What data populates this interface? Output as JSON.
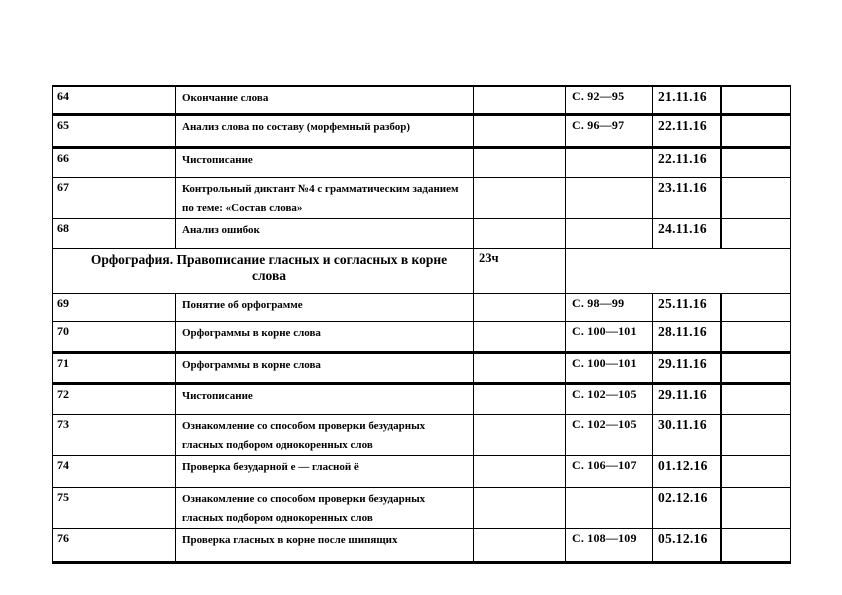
{
  "section": {
    "title": "Орфография. Правописание гласных и согласных в корне слова",
    "hours": "23ч"
  },
  "rows_before_section": [
    {
      "num": "64",
      "topic": "Окончание слова",
      "pages": "С. 92—95",
      "date": "21.11.16"
    },
    {
      "num": "65",
      "topic": "Анализ слова по составу (морфемный разбор)",
      "pages": "С. 96—97",
      "date": "22.11.16"
    },
    {
      "num": "66",
      "topic": "Чистописание",
      "pages": "",
      "date": "22.11.16"
    },
    {
      "num": "67",
      "topic": "Контрольный диктант №4 с грамматическим заданием по теме: «Состав слова»",
      "pages": "",
      "date": "23.11.16"
    },
    {
      "num": "68",
      "topic": "Анализ ошибок",
      "pages": "",
      "date": "24.11.16"
    }
  ],
  "rows_after_section": [
    {
      "num": "69",
      "topic": "Понятие об орфограмме",
      "pages": "С. 98—99",
      "date": "25.11.16"
    },
    {
      "num": "70",
      "topic": "Орфограммы в корне слова",
      "pages": "С. 100—101",
      "date": "28.11.16"
    },
    {
      "num": "71",
      "topic": "Орфограммы в корне слова",
      "pages": "С. 100—101",
      "date": "29.11.16"
    },
    {
      "num": "72",
      "topic": "Чистописание",
      "pages": "С. 102—105",
      "date": "29.11.16"
    },
    {
      "num": "73",
      "topic": "Ознакомление со способом проверки безударных гласных подбором однокоренных слов",
      "pages": "С. 102—105",
      "date": "30.11.16"
    },
    {
      "num": "74",
      "topic": "Проверка безударной е — гласной ё",
      "pages": "С. 106—107",
      "date": "01.12.16"
    },
    {
      "num": "75",
      "topic": "Ознакомление со способом проверки безударных гласных подбором однокоренных слов",
      "pages": "",
      "date": "02.12.16"
    },
    {
      "num": "76",
      "topic": "Проверка гласных в корне после шипящих",
      "pages": "С. 108—109",
      "date": "05.12.16"
    }
  ]
}
